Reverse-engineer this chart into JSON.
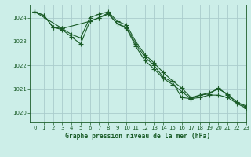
{
  "bg_color": "#cceee8",
  "grid_color": "#aacccc",
  "line_color": "#1a5c28",
  "xlabel": "Graphe pression niveau de la mer (hPa)",
  "xlabel_color": "#1a5c28",
  "tick_color": "#1a5c28",
  "xlim": [
    -0.5,
    23
  ],
  "ylim": [
    1019.6,
    1024.55
  ],
  "yticks": [
    1020,
    1021,
    1022,
    1023,
    1024
  ],
  "xticks": [
    0,
    1,
    2,
    3,
    4,
    5,
    6,
    7,
    8,
    9,
    10,
    11,
    12,
    13,
    14,
    15,
    16,
    17,
    18,
    19,
    20,
    21,
    22,
    23
  ],
  "series": [
    {
      "x": [
        0,
        1,
        2,
        3,
        4,
        5,
        6,
        7,
        8,
        9,
        10,
        11,
        12,
        13,
        14,
        15,
        16,
        17,
        18,
        19,
        20,
        21,
        22,
        23
      ],
      "y": [
        1024.25,
        1024.1,
        1023.6,
        1023.55,
        1023.3,
        1023.15,
        1024.0,
        1024.15,
        1024.25,
        1023.85,
        1023.7,
        1023.0,
        1022.45,
        1022.1,
        1021.7,
        1021.35,
        1021.05,
        1020.65,
        1020.75,
        1020.8,
        1021.05,
        1020.75,
        1020.45,
        1020.3
      ]
    },
    {
      "x": [
        0,
        1,
        2,
        3,
        4,
        5,
        6,
        7,
        8,
        9,
        10,
        11,
        12,
        13,
        14,
        15,
        16,
        17,
        18,
        19,
        20,
        21,
        22,
        23
      ],
      "y": [
        1024.25,
        1024.1,
        1023.6,
        1023.5,
        1023.2,
        1022.9,
        1023.85,
        1024.0,
        1024.2,
        1023.75,
        1023.6,
        1022.9,
        1022.35,
        1022.0,
        1021.5,
        1021.3,
        1020.65,
        1020.6,
        1020.75,
        1020.85,
        1021.0,
        1020.8,
        1020.45,
        1020.25
      ]
    },
    {
      "x": [
        0,
        3,
        6,
        7,
        8,
        9,
        10,
        11,
        12,
        13,
        14,
        15,
        16,
        17,
        18,
        19,
        20,
        21,
        22,
        23
      ],
      "y": [
        1024.25,
        1023.55,
        1023.85,
        1024.0,
        1024.15,
        1023.75,
        1023.55,
        1022.8,
        1022.2,
        1021.85,
        1021.45,
        1021.2,
        1020.9,
        1020.6,
        1020.65,
        1020.75,
        1020.75,
        1020.65,
        1020.4,
        1020.2
      ]
    }
  ]
}
